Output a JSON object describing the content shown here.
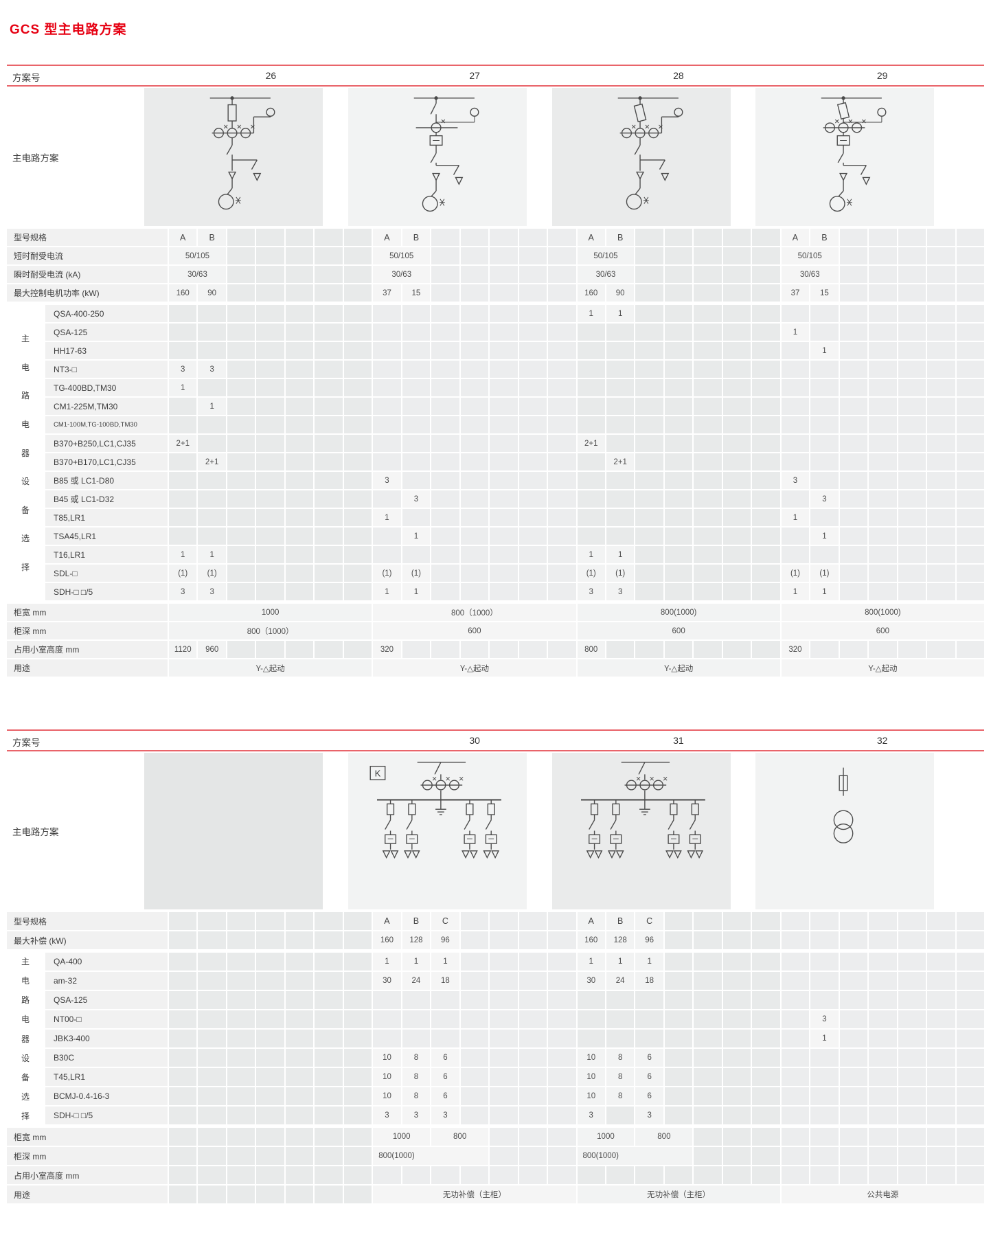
{
  "title": "GCS 型主电路方案",
  "accent_red": "#e60012",
  "rule_red": "#e9646a",
  "diagram_stroke": "#4a4a4a",
  "table1": {
    "scheme_no_label": "方案号",
    "schemes": [
      "26",
      "27",
      "28",
      "29"
    ],
    "diagram_label": "主电路方案",
    "diagram_names": [
      "circuit-diagram-26",
      "circuit-diagram-27",
      "circuit-diagram-28",
      "circuit-diagram-29"
    ],
    "group_label": "主电路电器设备选择",
    "rows": [
      {
        "label": "型号规格",
        "layout": "pair",
        "header": true,
        "cells": [
          [
            "A",
            "B"
          ],
          [
            "A",
            "B"
          ],
          [
            "A",
            "B"
          ],
          [
            "A",
            "B"
          ]
        ]
      },
      {
        "label": "短时耐受电流",
        "layout": "merge2",
        "cells": [
          "50/105",
          "50/105",
          "50/105",
          "50/105"
        ]
      },
      {
        "label": "瞬时耐受电流 (kA)",
        "layout": "merge2",
        "cells": [
          "30/63",
          "30/63",
          "30/63",
          "30/63"
        ]
      },
      {
        "label": "最大控制电机功率 (kW)",
        "layout": "pair",
        "cells": [
          [
            "160",
            "90"
          ],
          [
            "37",
            "15"
          ],
          [
            "160",
            "90"
          ],
          [
            "37",
            "15"
          ]
        ]
      },
      {
        "label": "QSA-400-250",
        "group": true,
        "layout": "pair",
        "cells": [
          [
            "",
            ""
          ],
          [
            "",
            ""
          ],
          [
            "1",
            "1"
          ],
          [
            "",
            ""
          ]
        ]
      },
      {
        "label": "QSA-125",
        "group": true,
        "layout": "pair",
        "cells": [
          [
            "",
            ""
          ],
          [
            "",
            ""
          ],
          [
            "",
            ""
          ],
          [
            "1",
            ""
          ]
        ]
      },
      {
        "label": "HH17-63",
        "group": true,
        "layout": "pair",
        "cells": [
          [
            "",
            ""
          ],
          [
            "",
            ""
          ],
          [
            "",
            ""
          ],
          [
            "",
            "1"
          ]
        ]
      },
      {
        "label": "NT3-□",
        "group": true,
        "layout": "pair",
        "cells": [
          [
            "3",
            "3"
          ],
          [
            "",
            ""
          ],
          [
            "",
            ""
          ],
          [
            "",
            ""
          ]
        ]
      },
      {
        "label": "TG-400BD,TM30",
        "group": true,
        "layout": "pair",
        "cells": [
          [
            "1",
            ""
          ],
          [
            "",
            ""
          ],
          [
            "",
            ""
          ],
          [
            "",
            ""
          ]
        ]
      },
      {
        "label": "CM1-225M,TM30",
        "group": true,
        "layout": "pair",
        "cells": [
          [
            "",
            "1"
          ],
          [
            "",
            ""
          ],
          [
            "",
            ""
          ],
          [
            "",
            ""
          ]
        ]
      },
      {
        "label": "CM1-100M,TG-100BD,TM30",
        "group": true,
        "small": true,
        "layout": "pair",
        "cells": [
          [
            "",
            ""
          ],
          [
            "",
            ""
          ],
          [
            "",
            ""
          ],
          [
            "",
            ""
          ]
        ]
      },
      {
        "label": "B370+B250,LC1,CJ35",
        "group": true,
        "layout": "pair",
        "cells": [
          [
            "2+1",
            ""
          ],
          [
            "",
            ""
          ],
          [
            "2+1",
            ""
          ],
          [
            "",
            ""
          ]
        ]
      },
      {
        "label": "B370+B170,LC1,CJ35",
        "group": true,
        "layout": "pair",
        "cells": [
          [
            "",
            "2+1"
          ],
          [
            "",
            ""
          ],
          [
            "",
            "2+1"
          ],
          [
            "",
            ""
          ]
        ]
      },
      {
        "label": "B85 或 LC1-D80",
        "group": true,
        "layout": "pair",
        "cells": [
          [
            "",
            ""
          ],
          [
            "3",
            ""
          ],
          [
            "",
            ""
          ],
          [
            "3",
            ""
          ]
        ]
      },
      {
        "label": "B45 或 LC1-D32",
        "group": true,
        "layout": "pair",
        "cells": [
          [
            "",
            ""
          ],
          [
            "",
            "3"
          ],
          [
            "",
            ""
          ],
          [
            "",
            "3"
          ]
        ]
      },
      {
        "label": "T85,LR1",
        "group": true,
        "layout": "pair",
        "cells": [
          [
            "",
            ""
          ],
          [
            "1",
            ""
          ],
          [
            "",
            ""
          ],
          [
            "1",
            ""
          ]
        ]
      },
      {
        "label": "TSA45,LR1",
        "group": true,
        "layout": "pair",
        "cells": [
          [
            "",
            ""
          ],
          [
            "",
            "1"
          ],
          [
            "",
            ""
          ],
          [
            "",
            "1"
          ]
        ]
      },
      {
        "label": "T16,LR1",
        "group": true,
        "layout": "pair",
        "cells": [
          [
            "1",
            "1"
          ],
          [
            "",
            ""
          ],
          [
            "1",
            "1"
          ],
          [
            "",
            ""
          ]
        ]
      },
      {
        "label": "SDL-□",
        "group": true,
        "layout": "pair",
        "cells": [
          [
            "(1)",
            "(1)"
          ],
          [
            "(1)",
            "(1)"
          ],
          [
            "(1)",
            "(1)"
          ],
          [
            "(1)",
            "(1)"
          ]
        ]
      },
      {
        "label": "SDH-□ □/5",
        "group": true,
        "layout": "pair",
        "cells": [
          [
            "3",
            "3"
          ],
          [
            "1",
            "1"
          ],
          [
            "3",
            "3"
          ],
          [
            "1",
            "1"
          ]
        ]
      },
      {
        "label": "柜宽 mm",
        "layout": "area",
        "footer": true,
        "cells": [
          "1000",
          "800（1000）",
          "800(1000)",
          "800(1000)"
        ]
      },
      {
        "label": "柜深 mm",
        "layout": "area",
        "cells": [
          "800（1000）",
          "600",
          "600",
          "600"
        ]
      },
      {
        "label": "占用小室高度 mm",
        "layout": "pair",
        "cells": [
          [
            "1120",
            "960"
          ],
          [
            "320",
            ""
          ],
          [
            "800",
            ""
          ],
          [
            "320",
            ""
          ]
        ]
      },
      {
        "label": "用途",
        "layout": "area",
        "cells": [
          "Y-△起动",
          "Y-△起动",
          "Y-△起动",
          "Y-△起动"
        ]
      }
    ]
  },
  "table2": {
    "scheme_no_label": "方案号",
    "schemes": [
      "30",
      "31",
      "32"
    ],
    "diagram_label": "主电路方案",
    "diagram_names": [
      "circuit-diagram-30",
      "circuit-diagram-31",
      "circuit-diagram-32"
    ],
    "group_label": "主电路电器设备选择",
    "rows": [
      {
        "label": "型号规格",
        "layout": "triple",
        "header": true,
        "cells": [
          [
            "A",
            "B",
            "C"
          ],
          [
            "A",
            "B",
            "C"
          ],
          [
            "",
            "",
            ""
          ]
        ]
      },
      {
        "label": "最大补偿 (kW)",
        "layout": "triple",
        "cells": [
          [
            "160",
            "128",
            "96"
          ],
          [
            "160",
            "128",
            "96"
          ],
          [
            "",
            "",
            ""
          ]
        ]
      },
      {
        "label": "QA-400",
        "group": true,
        "layout": "triple",
        "cells": [
          [
            "1",
            "1",
            "1"
          ],
          [
            "1",
            "1",
            "1"
          ],
          [
            "",
            "",
            ""
          ]
        ]
      },
      {
        "label": "am-32",
        "group": true,
        "layout": "triple",
        "cells": [
          [
            "30",
            "24",
            "18"
          ],
          [
            "30",
            "24",
            "18"
          ],
          [
            "",
            "",
            ""
          ]
        ]
      },
      {
        "label": "QSA-125",
        "group": true,
        "layout": "triple",
        "cells": [
          [
            "",
            "",
            ""
          ],
          [
            "",
            "",
            ""
          ],
          [
            "",
            "",
            ""
          ]
        ]
      },
      {
        "label": "NT00-□",
        "group": true,
        "layout": "triple",
        "cells": [
          [
            "",
            "",
            ""
          ],
          [
            "",
            "",
            ""
          ],
          [
            "",
            "3",
            ""
          ]
        ]
      },
      {
        "label": "JBK3-400",
        "group": true,
        "layout": "triple",
        "cells": [
          [
            "",
            "",
            ""
          ],
          [
            "",
            "",
            ""
          ],
          [
            "",
            "1",
            ""
          ]
        ]
      },
      {
        "label": "B30C",
        "group": true,
        "layout": "triple",
        "cells": [
          [
            "10",
            "8",
            "6"
          ],
          [
            "10",
            "8",
            "6"
          ],
          [
            "",
            "",
            ""
          ]
        ]
      },
      {
        "label": "T45,LR1",
        "group": true,
        "layout": "triple",
        "cells": [
          [
            "10",
            "8",
            "6"
          ],
          [
            "10",
            "8",
            "6"
          ],
          [
            "",
            "",
            ""
          ]
        ]
      },
      {
        "label": "BCMJ-0.4-16-3",
        "group": true,
        "layout": "triple",
        "cells": [
          [
            "10",
            "8",
            "6"
          ],
          [
            "10",
            "8",
            "6"
          ],
          [
            "",
            "",
            ""
          ]
        ]
      },
      {
        "label": "SDH-□ □/5",
        "group": true,
        "layout": "triple",
        "cells": [
          [
            "3",
            "3",
            "3"
          ],
          [
            "3",
            "",
            "3"
          ],
          [
            "",
            "",
            ""
          ]
        ]
      },
      {
        "label": "柜宽 mm",
        "layout": "dualmerge",
        "footer": true,
        "cells": [
          [
            "1000",
            "800"
          ],
          [
            "1000",
            "800"
          ],
          [
            "",
            ""
          ]
        ]
      },
      {
        "label": "柜深 mm",
        "layout": "leftmerge",
        "cells": [
          "800(1000)",
          "800(1000)",
          ""
        ]
      },
      {
        "label": "占用小室高度 mm",
        "layout": "leftmerge",
        "cells": [
          "",
          "",
          ""
        ]
      },
      {
        "label": "用途",
        "layout": "area",
        "cells": [
          "无功补偿（主柜）",
          "无功补偿（主柜）",
          "公共电源"
        ]
      }
    ]
  }
}
